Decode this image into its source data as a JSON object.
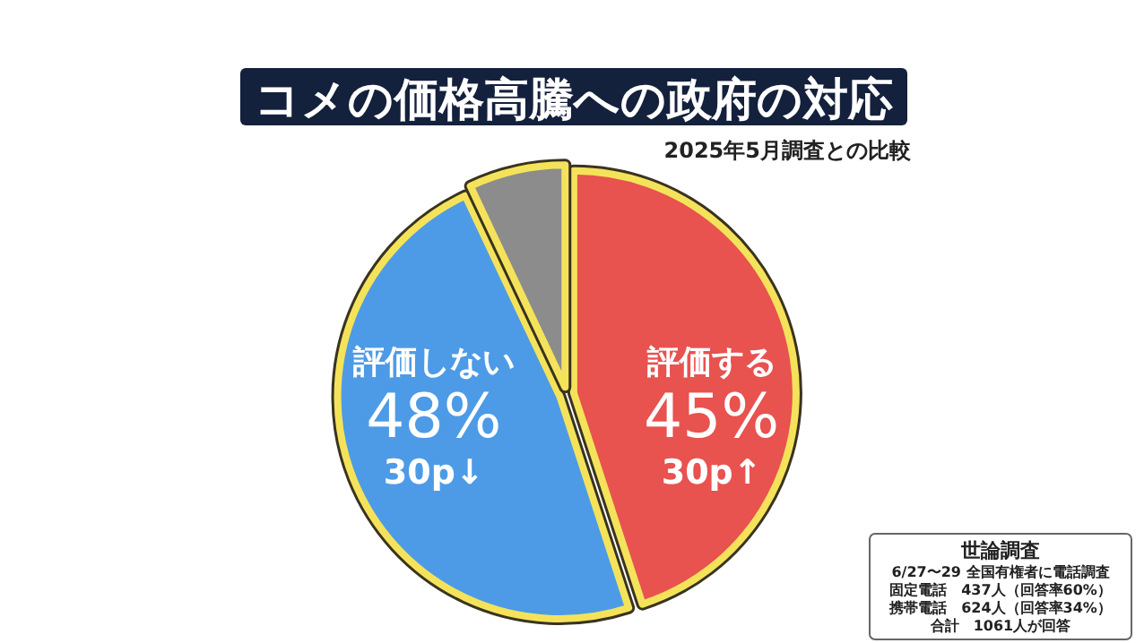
{
  "chart_data": {
    "type": "pie",
    "title": "コメの価格高騰への政府の対応",
    "subtitle": "2025年5月調査との比較",
    "categories": [
      "評価する",
      "評価しない",
      null
    ],
    "values": [
      45,
      48,
      7
    ],
    "colors": [
      "#e8524f",
      "#4d9be6",
      "#8c8c8c"
    ],
    "value_labels": [
      "45%",
      "48%",
      null
    ],
    "annotations": [
      {
        "text": "30p↑",
        "x": "評価する"
      },
      {
        "text": "30p↓",
        "x": "評価しない"
      },
      "世論調査",
      "6/27〜29 全国有権者に電話調査",
      "固定電話　437人（回答率60%）",
      "携帯電話　624人（回答率34%）",
      "合計　1061人が回答"
    ]
  }
}
